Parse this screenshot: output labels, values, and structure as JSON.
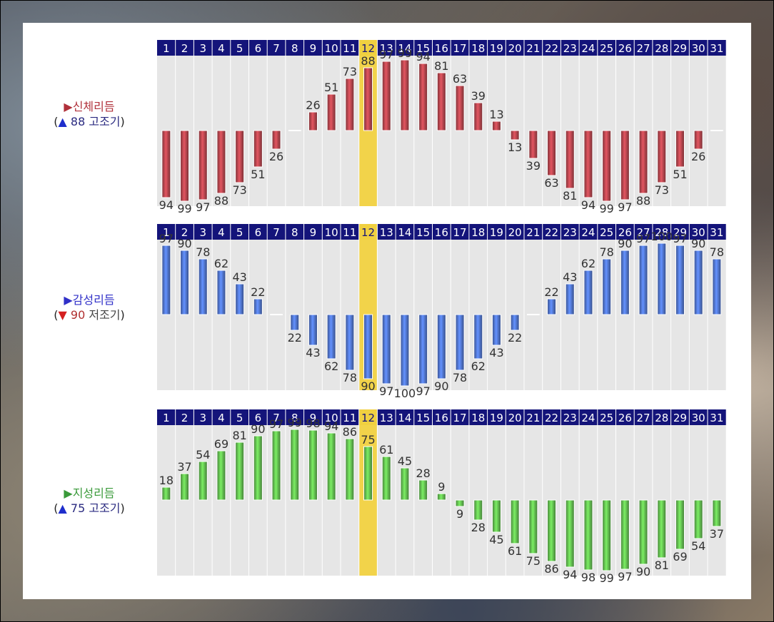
{
  "charts": [
    {
      "label": "▶신체리듬",
      "status_open": "(",
      "status_arrow": "▲",
      "status_value": "88",
      "status_text": "고조기",
      "status_close": ")",
      "label_color": "#b0303a",
      "arrow_color": "#1e2ecc",
      "value_color": "#2a2a80",
      "text_color": "#2a2a80",
      "bar_color": "#a84048",
      "highlight_day": 12
    },
    {
      "label": "▶감성리듬",
      "status_open": "(",
      "status_arrow": "▼",
      "status_value": "90",
      "status_text": "저조기",
      "status_close": ")",
      "label_color": "#3030c8",
      "arrow_color": "#d42020",
      "value_color": "#b03030",
      "text_color": "#444",
      "bar_color": "#4a6cc0",
      "highlight_day": 12
    },
    {
      "label": "▶지성리듬",
      "status_open": "(",
      "status_arrow": "▲",
      "status_value": "75",
      "status_text": "고조기",
      "status_close": ")",
      "label_color": "#3a9a3a",
      "arrow_color": "#1e2ecc",
      "value_color": "#2a2a80",
      "text_color": "#2a2a80",
      "bar_color": "#5cb04a",
      "highlight_day": 12
    }
  ],
  "chart_data": [
    {
      "type": "bar",
      "title": "",
      "x": [
        1,
        2,
        3,
        4,
        5,
        6,
        7,
        8,
        9,
        10,
        11,
        12,
        13,
        14,
        15,
        16,
        17,
        18,
        19,
        20,
        21,
        22,
        23,
        24,
        25,
        26,
        27,
        28,
        29,
        30,
        31
      ],
      "values": [
        -94,
        -99,
        -97,
        -88,
        -73,
        -51,
        -26,
        0,
        26,
        51,
        73,
        88,
        97,
        99,
        94,
        81,
        63,
        39,
        13,
        -13,
        -39,
        -63,
        -81,
        -94,
        -99,
        -97,
        -88,
        -73,
        -51,
        -26,
        0
      ],
      "ylim": [
        -100,
        100
      ],
      "highlight_day": 12,
      "grid": true
    },
    {
      "type": "bar",
      "title": "",
      "x": [
        1,
        2,
        3,
        4,
        5,
        6,
        7,
        8,
        9,
        10,
        11,
        12,
        13,
        14,
        15,
        16,
        17,
        18,
        19,
        20,
        21,
        22,
        23,
        24,
        25,
        26,
        27,
        28,
        29,
        30,
        31
      ],
      "values": [
        97,
        90,
        78,
        62,
        43,
        22,
        0,
        -22,
        -43,
        -62,
        -78,
        -90,
        -97,
        -100,
        -97,
        -90,
        -78,
        -62,
        -43,
        -22,
        0,
        22,
        43,
        62,
        78,
        90,
        97,
        100,
        97,
        90,
        78
      ],
      "ylim": [
        -100,
        100
      ],
      "highlight_day": 12,
      "grid": true
    },
    {
      "type": "bar",
      "title": "",
      "x": [
        1,
        2,
        3,
        4,
        5,
        6,
        7,
        8,
        9,
        10,
        11,
        12,
        13,
        14,
        15,
        16,
        17,
        18,
        19,
        20,
        21,
        22,
        23,
        24,
        25,
        26,
        27,
        28,
        29,
        30,
        31
      ],
      "values": [
        18,
        37,
        54,
        69,
        81,
        90,
        97,
        99,
        98,
        94,
        86,
        75,
        61,
        45,
        28,
        9,
        -9,
        -28,
        -45,
        -61,
        -75,
        -86,
        -94,
        -98,
        -99,
        -97,
        -90,
        -81,
        -69,
        -54,
        -37
      ],
      "ylim": [
        -100,
        100
      ],
      "highlight_day": 12,
      "grid": true
    }
  ]
}
